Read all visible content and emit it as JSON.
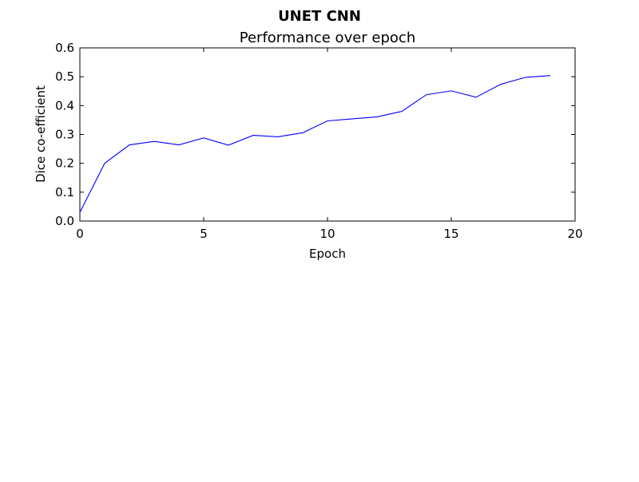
{
  "chart_data": {
    "type": "line",
    "suptitle": "UNET CNN",
    "title": "Performance over epoch",
    "xlabel": "Epoch",
    "ylabel": "Dice co-efficient",
    "xlim": [
      0,
      20
    ],
    "ylim": [
      0.0,
      0.6
    ],
    "xticks": [
      "0",
      "5",
      "10",
      "15",
      "20"
    ],
    "yticks": [
      "0.0",
      "0.1",
      "0.2",
      "0.3",
      "0.4",
      "0.5",
      "0.6"
    ],
    "grid": false,
    "series": [
      {
        "color": "#0000ff",
        "x": [
          0,
          1,
          2,
          3,
          4,
          5,
          6,
          7,
          8,
          9,
          10,
          11,
          12,
          13,
          14,
          15,
          16,
          17,
          18,
          19
        ],
        "y": [
          0.03,
          0.2,
          0.264,
          0.276,
          0.264,
          0.288,
          0.263,
          0.297,
          0.292,
          0.306,
          0.347,
          0.354,
          0.361,
          0.38,
          0.438,
          0.451,
          0.429,
          0.474,
          0.498,
          0.504
        ]
      }
    ]
  }
}
